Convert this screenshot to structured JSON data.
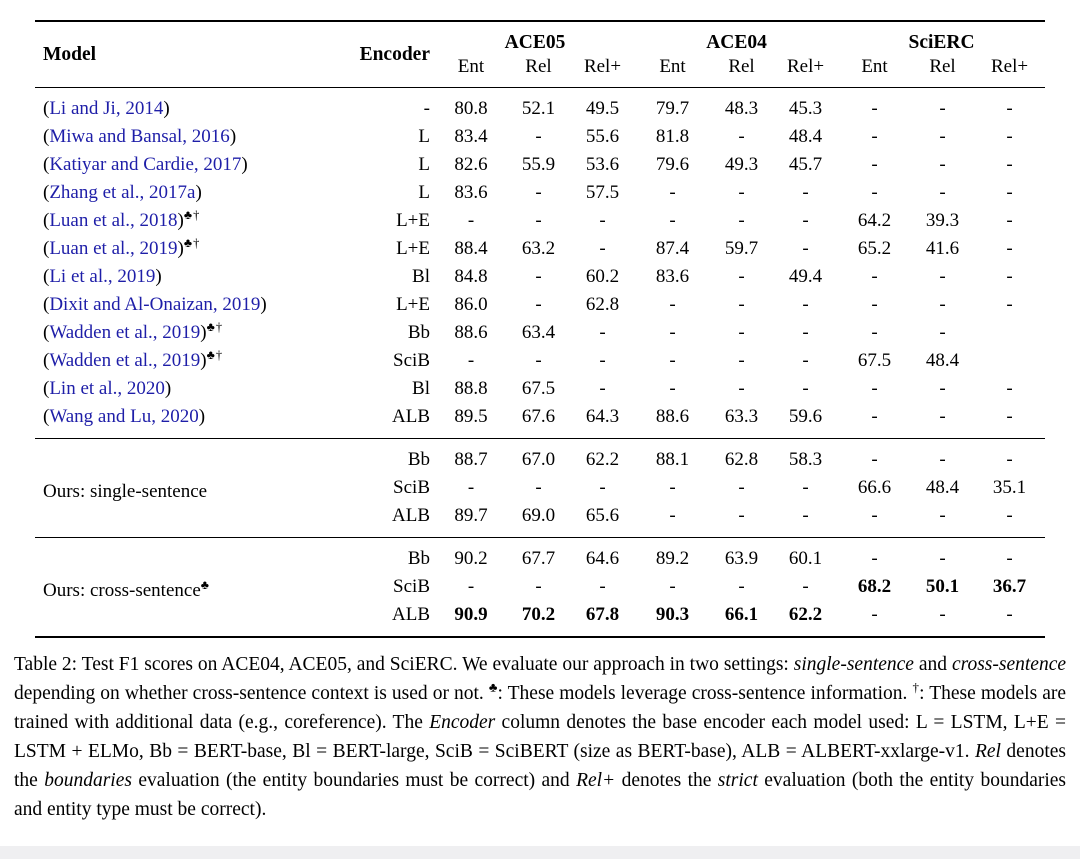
{
  "colors": {
    "citation_blue": "#1e1ea8",
    "text": "#000000",
    "rule": "#000000",
    "page_bg": "#ffffff",
    "bottom_strip": "#efeff1"
  },
  "table": {
    "columns": {
      "model": "Model",
      "encoder": "Encoder",
      "groups": [
        {
          "label": "ACE05",
          "subs": [
            "Ent",
            "Rel",
            "Rel+"
          ]
        },
        {
          "label": "ACE04",
          "subs": [
            "Ent",
            "Rel",
            "Rel+"
          ]
        },
        {
          "label": "SciERC",
          "subs": [
            "Ent",
            "Rel",
            "Rel+"
          ]
        }
      ]
    },
    "sections": [
      {
        "rows": [
          {
            "model": {
              "open": "(",
              "text": "Li and Ji, 2014",
              "close": ")",
              "sup": ""
            },
            "encoder": "-",
            "values": [
              "80.8",
              "52.1",
              "49.5",
              "79.7",
              "48.3",
              "45.3",
              "-",
              "-",
              "-"
            ]
          },
          {
            "model": {
              "open": "(",
              "text": "Miwa and Bansal, 2016",
              "close": ")",
              "sup": ""
            },
            "encoder": "L",
            "values": [
              "83.4",
              "-",
              "55.6",
              "81.8",
              "-",
              "48.4",
              "-",
              "-",
              "-"
            ]
          },
          {
            "model": {
              "open": "(",
              "text": "Katiyar and Cardie, 2017",
              "close": ")",
              "sup": ""
            },
            "encoder": "L",
            "values": [
              "82.6",
              "55.9",
              "53.6",
              "79.6",
              "49.3",
              "45.7",
              "-",
              "-",
              "-"
            ]
          },
          {
            "model": {
              "open": "(",
              "text": "Zhang et al., 2017a",
              "close": ")",
              "sup": ""
            },
            "encoder": "L",
            "values": [
              "83.6",
              "-",
              "57.5",
              "-",
              "-",
              "-",
              "-",
              "-",
              "-"
            ]
          },
          {
            "model": {
              "open": "(",
              "text": "Luan et al., 2018",
              "close": ")",
              "sup": "♣†"
            },
            "encoder": "L+E",
            "values": [
              "-",
              "-",
              "-",
              "-",
              "-",
              "-",
              "64.2",
              "39.3",
              "-"
            ]
          },
          {
            "model": {
              "open": "(",
              "text": "Luan et al., 2019",
              "close": ")",
              "sup": "♣†"
            },
            "encoder": "L+E",
            "values": [
              "88.4",
              "63.2",
              "-",
              "87.4",
              "59.7",
              "-",
              "65.2",
              "41.6",
              "-"
            ]
          },
          {
            "model": {
              "open": "(",
              "text": "Li et al., 2019",
              "close": ")",
              "sup": ""
            },
            "encoder": "Bl",
            "values": [
              "84.8",
              "-",
              "60.2",
              "83.6",
              "-",
              "49.4",
              "-",
              "-",
              "-"
            ]
          },
          {
            "model": {
              "open": "(",
              "text": "Dixit and Al-Onaizan, 2019",
              "close": ")",
              "sup": ""
            },
            "encoder": "L+E",
            "values": [
              "86.0",
              "-",
              "62.8",
              "-",
              "-",
              "-",
              "-",
              "-",
              "-"
            ]
          },
          {
            "model": {
              "open": "(",
              "text": "Wadden et al., 2019",
              "close": ")",
              "sup": "♣†"
            },
            "encoder": "Bb",
            "values": [
              "88.6",
              "63.4",
              "-",
              "-",
              "-",
              "-",
              "-",
              "-",
              ""
            ]
          },
          {
            "model": {
              "open": "(",
              "text": "Wadden et al., 2019",
              "close": ")",
              "sup": "♣†"
            },
            "encoder": "SciB",
            "values": [
              "-",
              "-",
              "-",
              "-",
              "-",
              "-",
              "67.5",
              "48.4",
              ""
            ]
          },
          {
            "model": {
              "open": "(",
              "text": "Lin et al., 2020",
              "close": ")",
              "sup": ""
            },
            "encoder": "Bl",
            "values": [
              "88.8",
              "67.5",
              "-",
              "-",
              "-",
              "-",
              "-",
              "-",
              "-"
            ]
          },
          {
            "model": {
              "open": "(",
              "text": "Wang and Lu, 2020",
              "close": ")",
              "sup": ""
            },
            "encoder": "ALB",
            "values": [
              "89.5",
              "67.6",
              "64.3",
              "88.6",
              "63.3",
              "59.6",
              "-",
              "-",
              "-"
            ]
          }
        ]
      },
      {
        "label": "Ours: single-sentence",
        "label_sup": "",
        "rows": [
          {
            "encoder": "Bb",
            "values": [
              "88.7",
              "67.0",
              "62.2",
              "88.1",
              "62.8",
              "58.3",
              "-",
              "-",
              "-"
            ]
          },
          {
            "encoder": "SciB",
            "values": [
              "-",
              "-",
              "-",
              "-",
              "-",
              "-",
              "66.6",
              "48.4",
              "35.1"
            ]
          },
          {
            "encoder": "ALB",
            "values": [
              "89.7",
              "69.0",
              "65.6",
              "-",
              "-",
              "-",
              "-",
              "-",
              "-"
            ]
          }
        ]
      },
      {
        "label": "Ours: cross-sentence",
        "label_sup": "♣",
        "rows": [
          {
            "encoder": "Bb",
            "values": [
              "90.2",
              "67.7",
              "64.6",
              "89.2",
              "63.9",
              "60.1",
              "-",
              "-",
              "-"
            ]
          },
          {
            "encoder": "SciB",
            "values": [
              "-",
              "-",
              "-",
              "-",
              "-",
              "-",
              "68.2",
              "50.1",
              "36.7"
            ],
            "bold": [
              0,
              0,
              0,
              0,
              0,
              0,
              1,
              1,
              1
            ]
          },
          {
            "encoder": "ALB",
            "values": [
              "90.9",
              "70.2",
              "67.8",
              "90.3",
              "66.1",
              "62.2",
              "-",
              "-",
              "-"
            ],
            "bold": [
              1,
              1,
              1,
              1,
              1,
              1,
              0,
              0,
              0
            ]
          }
        ]
      }
    ]
  },
  "caption": {
    "segments": [
      {
        "t": "Table 2: Test F1 scores on ACE04, ACE05, and SciERC. We evaluate our approach in two settings: "
      },
      {
        "t": "single-sentence",
        "i": true
      },
      {
        "t": " and "
      },
      {
        "t": "cross-sentence",
        "i": true
      },
      {
        "t": " depending on whether cross-sentence context is used or not. "
      },
      {
        "t": "♣",
        "sup": true
      },
      {
        "t": ": These models leverage cross-sentence information. "
      },
      {
        "t": "†",
        "sup": true
      },
      {
        "t": ": These models are trained with additional data (e.g., coreference). The "
      },
      {
        "t": "Encoder",
        "i": true
      },
      {
        "t": " column denotes the base encoder each model used: L = LSTM, L+E = LSTM + ELMo, Bb = BERT-base, Bl = BERT-large, SciB = SciBERT (size as BERT-base), ALB = ALBERT-xxlarge-v1. "
      },
      {
        "t": "Rel",
        "i": true
      },
      {
        "t": " denotes the "
      },
      {
        "t": "boundaries",
        "i": true
      },
      {
        "t": " evaluation (the entity boundaries must be correct) and "
      },
      {
        "t": "Rel+",
        "i": true
      },
      {
        "t": " denotes the "
      },
      {
        "t": "strict",
        "i": true
      },
      {
        "t": " evaluation (both the entity boundaries and entity type must be correct)."
      }
    ]
  }
}
